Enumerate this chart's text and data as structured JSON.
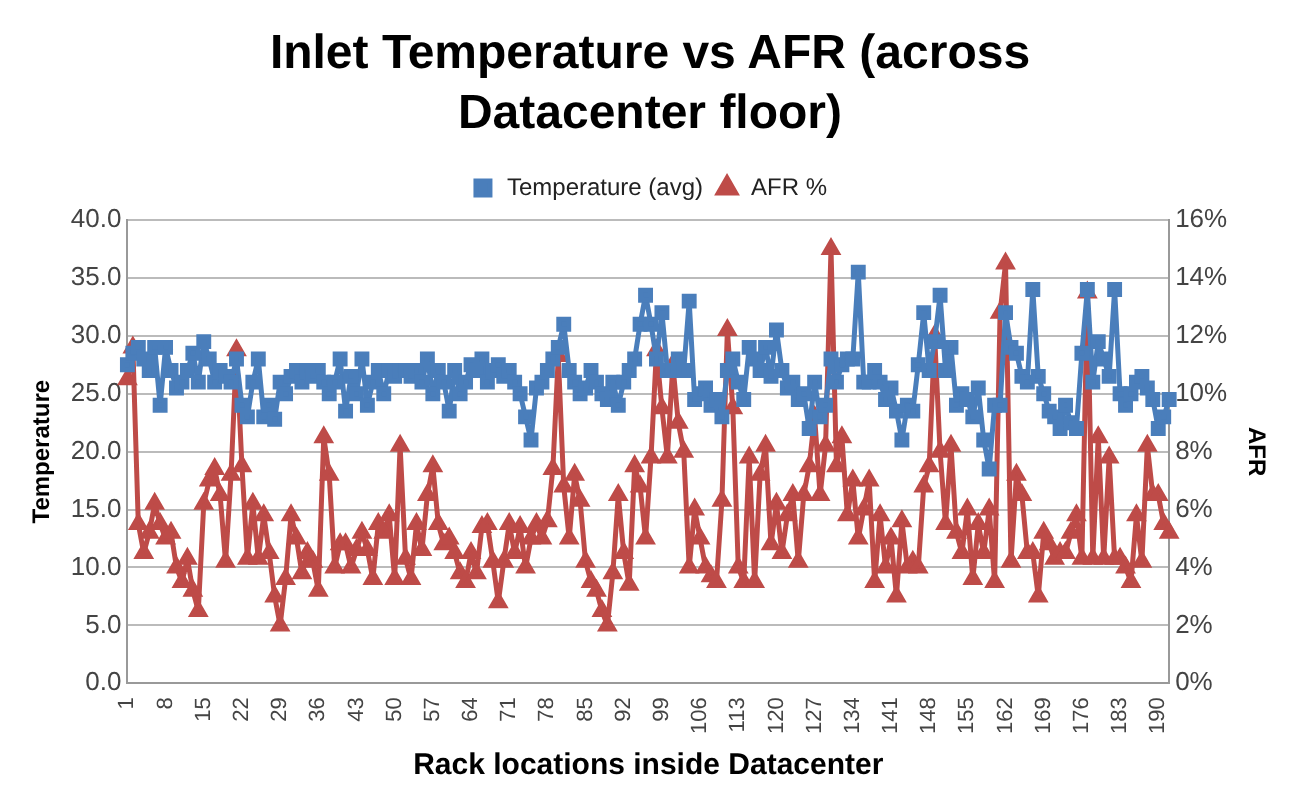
{
  "chart_data": {
    "type": "line",
    "title": "Inlet Temperature vs AFR (across Datacenter floor)",
    "xlabel": "Rack locations inside Datacenter",
    "ylabel": "Temperature",
    "y2label": "AFR",
    "categories": [
      "1",
      null,
      null,
      null,
      null,
      null,
      null,
      "8",
      null,
      null,
      null,
      null,
      null,
      null,
      "15",
      null,
      null,
      null,
      null,
      null,
      null,
      "22",
      null,
      null,
      null,
      null,
      null,
      null,
      "29",
      null,
      null,
      null,
      null,
      null,
      null,
      "36",
      null,
      null,
      null,
      null,
      null,
      null,
      "43",
      null,
      null,
      null,
      null,
      null,
      null,
      "50",
      null,
      null,
      null,
      null,
      null,
      null,
      "57",
      null,
      null,
      null,
      null,
      null,
      null,
      "64",
      null,
      null,
      null,
      null,
      null,
      null,
      "71",
      null,
      null,
      null,
      null,
      null,
      null,
      "78",
      null,
      null,
      null,
      null,
      null,
      null,
      "85",
      null,
      null,
      null,
      null,
      null,
      null,
      "92",
      null,
      null,
      null,
      null,
      null,
      null,
      "99",
      null,
      null,
      null,
      null,
      null,
      null,
      "106",
      null,
      null,
      null,
      null,
      null,
      null,
      "113",
      null,
      null,
      null,
      null,
      null,
      null,
      "120",
      null,
      null,
      null,
      null,
      null,
      null,
      "127",
      null,
      null,
      null,
      null,
      null,
      null,
      "134",
      null,
      null,
      null,
      null,
      null,
      null,
      "141",
      null,
      null,
      null,
      null,
      null,
      null,
      "148",
      null,
      null,
      null,
      null,
      null,
      null,
      "155",
      null,
      null,
      null,
      null,
      null,
      null,
      "162",
      null,
      null,
      null,
      null,
      null,
      null,
      "169",
      null,
      null,
      null,
      null,
      null,
      null,
      "176",
      null,
      null,
      null,
      null,
      null,
      null,
      "183",
      null,
      null,
      null,
      null,
      null,
      null,
      "190",
      null,
      null
    ],
    "series": [
      {
        "name": "Temperature (avg)",
        "color": "#4a7ebb",
        "marker": "square",
        "values": [
          27.5,
          28.5,
          29,
          28,
          27,
          29,
          24,
          29,
          27,
          25.5,
          26,
          27,
          28.5,
          26,
          29.5,
          28,
          26,
          27,
          26.5,
          26,
          28,
          24,
          23,
          26,
          28,
          23,
          24,
          22.8,
          26,
          25,
          26.5,
          27,
          26,
          27,
          26.5,
          27,
          26,
          25,
          26,
          28,
          23.5,
          26.5,
          25,
          28,
          24,
          26,
          27,
          25,
          27,
          26.5,
          27,
          27,
          26.5,
          27,
          26,
          28,
          25,
          27,
          26,
          23.5,
          27,
          25,
          26,
          27.5,
          27,
          28,
          26,
          27,
          27.5,
          26.5,
          27,
          26,
          25,
          23,
          21,
          25.5,
          26,
          27,
          28,
          29,
          31,
          27,
          26,
          25,
          25.5,
          27,
          26,
          25,
          24.5,
          26,
          24,
          26,
          27,
          28,
          31,
          33.5,
          31,
          28,
          32,
          27,
          27,
          28,
          27,
          33,
          24.5,
          25,
          25.5,
          24,
          24.5,
          23,
          27,
          28,
          26,
          24.5,
          29,
          28,
          27,
          29,
          26.5,
          30.5,
          27,
          25.5,
          26,
          24.5,
          25,
          22,
          26,
          23,
          24,
          28,
          26,
          27.5,
          28,
          28,
          35.5,
          26,
          26,
          27,
          26,
          24.5,
          25.5,
          23.5,
          21,
          24,
          23.5,
          27.5,
          32,
          27,
          29.5,
          33.5,
          27,
          29,
          24,
          25,
          24.5,
          23,
          25.5,
          21,
          18.5,
          24,
          24,
          32,
          29,
          28.5,
          26.5,
          26,
          34,
          26.5,
          25,
          23.5,
          23,
          22,
          24,
          22.5,
          22,
          28.5,
          34,
          26,
          29.5,
          28,
          26.5,
          34,
          25,
          24,
          25,
          26,
          26.5,
          25.5,
          24.5,
          22,
          23,
          24.5
        ]
      },
      {
        "name": "AFR %",
        "color": "#be4b48",
        "marker": "triangle",
        "axis": "y2",
        "values": [
          10.5,
          11.6,
          5.5,
          4.5,
          5.2,
          6.2,
          5.5,
          5,
          5.2,
          4,
          3.5,
          4.3,
          3.2,
          2.5,
          6.2,
          7,
          7.4,
          6.5,
          4.2,
          7.2,
          11.5,
          7.5,
          4.3,
          6.2,
          4.3,
          5.8,
          4.5,
          3,
          2,
          3.6,
          5.8,
          5,
          3.8,
          4.5,
          4.2,
          3.2,
          8.5,
          7.2,
          4,
          4.8,
          4.8,
          4,
          4.6,
          5.2,
          4.6,
          3.6,
          5.5,
          5.2,
          5.8,
          3.6,
          8.2,
          4.3,
          3.6,
          5.5,
          4.6,
          6.5,
          7.5,
          5.5,
          4.8,
          5,
          4.5,
          3.8,
          3.5,
          4.5,
          3.8,
          5.4,
          5.5,
          4.2,
          2.8,
          4.2,
          5.5,
          4.5,
          5.4,
          4,
          5,
          5.5,
          5,
          5.6,
          7.4,
          11.3,
          6.8,
          5,
          7.2,
          6.3,
          4.2,
          3.5,
          3.2,
          2.5,
          2,
          3.8,
          6.5,
          4.5,
          3.4,
          7.5,
          6.8,
          5,
          7.8,
          11.5,
          9.5,
          7.8,
          11,
          9,
          8,
          4,
          6,
          5,
          4,
          3.7,
          3.5,
          6.3,
          12.2,
          9.5,
          4,
          3.5,
          7.8,
          3.5,
          7.2,
          8.2,
          4.8,
          6.2,
          4.5,
          5.8,
          6.5,
          4.2,
          6.5,
          7.5,
          9.2,
          6.5,
          8.2,
          15,
          7.5,
          8.5,
          5.8,
          7,
          5,
          6,
          7,
          3.5,
          5.8,
          4,
          5,
          3,
          5.6,
          4,
          4.2,
          4,
          6.8,
          7.5,
          12,
          8,
          5.5,
          8.2,
          5.2,
          4.5,
          6,
          3.6,
          5.5,
          4.5,
          6,
          3.5,
          12.8,
          14.5,
          4.2,
          7.2,
          6.5,
          4.5,
          4.5,
          3,
          5.2,
          4.8,
          4.3,
          4.5,
          4.5,
          5.2,
          5.8,
          4.3,
          13.5,
          4.3,
          8.5,
          4.3,
          7.8,
          4.3,
          4.3,
          4,
          3.5,
          5.8,
          4.2,
          8.2,
          6.5,
          6.5,
          5.5,
          5.2
        ]
      }
    ],
    "ylim": [
      0,
      40
    ],
    "yticks": [
      {
        "value": 0,
        "label": "0.0"
      },
      {
        "value": 5,
        "label": "5.0"
      },
      {
        "value": 10,
        "label": "10.0"
      },
      {
        "value": 15,
        "label": "15.0"
      },
      {
        "value": 20,
        "label": "20.0"
      },
      {
        "value": 25,
        "label": "25.0"
      },
      {
        "value": 30,
        "label": "30.0"
      },
      {
        "value": 35,
        "label": "35.0"
      },
      {
        "value": 40,
        "label": "40.0"
      }
    ],
    "y2lim": [
      0,
      16
    ],
    "y2ticks": [
      {
        "value": 0,
        "label": "0%"
      },
      {
        "value": 2,
        "label": "2%"
      },
      {
        "value": 4,
        "label": "4%"
      },
      {
        "value": 6,
        "label": "6%"
      },
      {
        "value": 8,
        "label": "8%"
      },
      {
        "value": 10,
        "label": "10%"
      },
      {
        "value": 12,
        "label": "12%"
      },
      {
        "value": 14,
        "label": "14%"
      },
      {
        "value": 16,
        "label": "16%"
      }
    ],
    "grid": "y",
    "legend": "top",
    "line_style": "solid"
  }
}
